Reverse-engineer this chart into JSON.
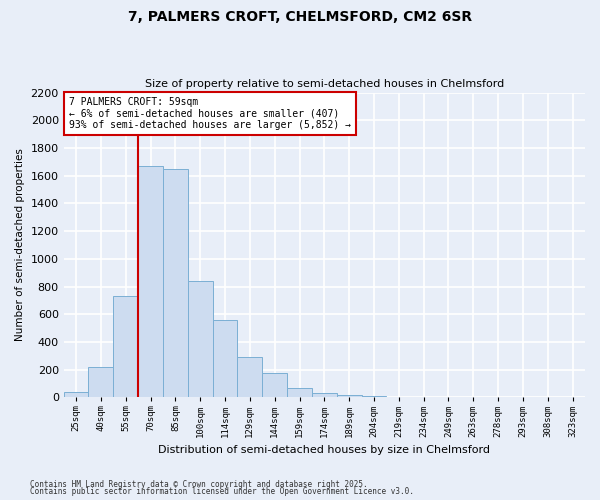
{
  "title_line1": "7, PALMERS CROFT, CHELMSFORD, CM2 6SR",
  "title_line2": "Size of property relative to semi-detached houses in Chelmsford",
  "bar_labels": [
    "25sqm",
    "40sqm",
    "55sqm",
    "70sqm",
    "85sqm",
    "100sqm",
    "114sqm",
    "129sqm",
    "144sqm",
    "159sqm",
    "174sqm",
    "189sqm",
    "204sqm",
    "219sqm",
    "234sqm",
    "249sqm",
    "263sqm",
    "278sqm",
    "293sqm",
    "308sqm",
    "323sqm"
  ],
  "bar_values": [
    40,
    220,
    730,
    1670,
    1650,
    840,
    560,
    295,
    180,
    70,
    30,
    20,
    10,
    0,
    0,
    0,
    0,
    0,
    0,
    0,
    0
  ],
  "bar_color": "#cddcf0",
  "bar_edge_color": "#7bafd4",
  "vline_color": "#cc0000",
  "ylabel": "Number of semi-detached properties",
  "xlabel": "Distribution of semi-detached houses by size in Chelmsford",
  "ylim": [
    0,
    2200
  ],
  "yticks": [
    0,
    200,
    400,
    600,
    800,
    1000,
    1200,
    1400,
    1600,
    1800,
    2000,
    2200
  ],
  "annotation_title": "7 PALMERS CROFT: 59sqm",
  "annotation_line2": "← 6% of semi-detached houses are smaller (407)",
  "annotation_line3": "93% of semi-detached houses are larger (5,852) →",
  "annotation_box_color": "#ffffff",
  "annotation_box_edge": "#cc0000",
  "footnote1": "Contains HM Land Registry data © Crown copyright and database right 2025.",
  "footnote2": "Contains public sector information licensed under the Open Government Licence v3.0.",
  "bg_color": "#e8eef8",
  "grid_color": "#ffffff"
}
